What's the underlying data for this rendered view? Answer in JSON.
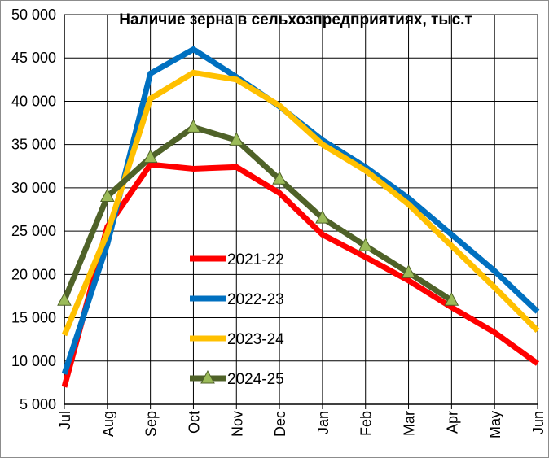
{
  "chart_data": {
    "type": "line",
    "title": "Наличие зерна в сельхозпредприятиях, тыс.т",
    "xlabel": "",
    "ylabel": "",
    "categories": [
      "Jul",
      "Aug",
      "Sep",
      "Oct",
      "Nov",
      "Dec",
      "Jan",
      "Feb",
      "Mar",
      "Apr",
      "May",
      "Jun"
    ],
    "ylim": [
      5000,
      50000
    ],
    "yticks": [
      5000,
      10000,
      15000,
      20000,
      25000,
      30000,
      35000,
      40000,
      45000,
      50000
    ],
    "ytick_labels": [
      "5 000",
      "10 000",
      "15 000",
      "20 000",
      "25 000",
      "30 000",
      "35 000",
      "40 000",
      "45 000",
      "50 000"
    ],
    "grid": true,
    "legend_position": "center",
    "series": [
      {
        "name": "2021-22",
        "color": "#ff0000",
        "marker": "none",
        "values": [
          7000,
          25500,
          32700,
          32200,
          32400,
          29400,
          24600,
          22000,
          19300,
          16200,
          13300,
          9700
        ]
      },
      {
        "name": "2022-23",
        "color": "#0070c0",
        "marker": "none",
        "values": [
          8500,
          23500,
          43200,
          46000,
          42800,
          39400,
          35500,
          32400,
          28800,
          24600,
          20400,
          15700
        ]
      },
      {
        "name": "2023-24",
        "color": "#ffc000",
        "marker": "none",
        "values": [
          13000,
          24800,
          40300,
          43300,
          42500,
          39500,
          35000,
          32000,
          28100,
          23300,
          18500,
          13500
        ]
      },
      {
        "name": "2024-25",
        "color": "#4f6228",
        "marker": "triangle",
        "marker_color": "#9bbb59",
        "values": [
          17000,
          29000,
          33500,
          37000,
          35500,
          31000,
          26500,
          23300,
          20200,
          17000,
          null,
          null
        ]
      }
    ]
  }
}
